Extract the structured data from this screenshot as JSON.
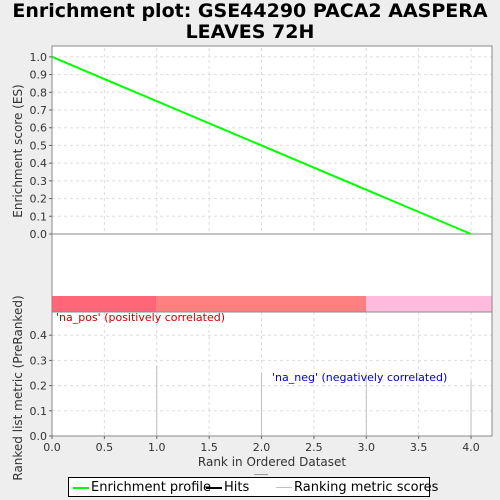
{
  "title_line1": "Enrichment plot: GSE44290 PACA2 AASPERA",
  "title_line2": "LEAVES 72H",
  "colors": {
    "profile": "#00ff00",
    "hits": "#000000",
    "ranking": "#c0c0c0",
    "pos_label": "#cc0000",
    "neg_label": "#0000cc",
    "band": [
      "#ff6677",
      "#ff8080",
      "#ffbbdd"
    ]
  },
  "chart_data": [
    {
      "type": "line",
      "ylabel": "Enrichment score (ES)",
      "xlim": [
        0,
        4.2
      ],
      "ylim": [
        0,
        1.05
      ],
      "y_ticks": [
        "0.0",
        "0.1",
        "0.2",
        "0.3",
        "0.4",
        "0.5",
        "0.6",
        "0.7",
        "0.8",
        "0.9",
        "1.0"
      ],
      "grid": true,
      "series": [
        {
          "name": "Enrichment profile",
          "x": [
            0,
            4
          ],
          "y": [
            1.0,
            0.0
          ]
        }
      ]
    },
    {
      "type": "bar",
      "ylabel": "Ranked list metric (PreRanked)",
      "xlabel": "Rank in Ordered Dataset",
      "xlim": [
        0,
        4.2
      ],
      "ylim": [
        0,
        0.5
      ],
      "x_ticks": [
        "0.0",
        "0.5",
        "1.0",
        "1.5",
        "2.0",
        "2.5",
        "3.0",
        "3.5",
        "4.0"
      ],
      "y_ticks": [
        "0.0",
        "0.1",
        "0.2",
        "0.3",
        "0.4"
      ],
      "grid": true,
      "series": [
        {
          "name": "Ranking metric scores",
          "x": [
            1,
            2,
            3,
            4
          ],
          "values": [
            0.28,
            0.25,
            0.25,
            0.22
          ]
        }
      ],
      "annotations": {
        "pos": "'na_pos' (positively correlated)",
        "neg": "'na_neg' (negatively correlated)"
      }
    }
  ],
  "legend": {
    "profile": "Enrichment profile",
    "hits": "Hits",
    "ranking": "Ranking metric scores"
  }
}
